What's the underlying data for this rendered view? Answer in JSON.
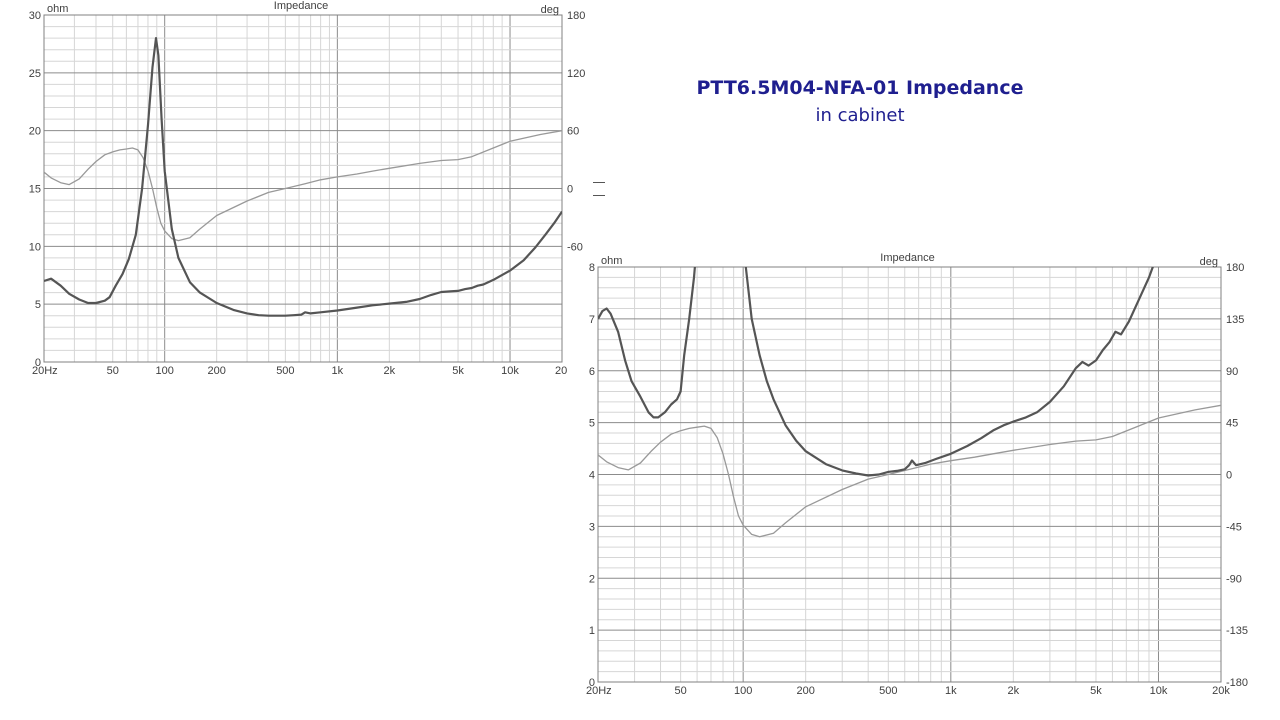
{
  "heading": {
    "title": "PTT6.5M04-NFA-01 Impedance",
    "subtitle": "in cabinet"
  },
  "chart_data": [
    {
      "type": "line",
      "title": "Impedance",
      "y_unit": "ohm",
      "y2_unit": "deg",
      "x_scale": "log",
      "xlim": [
        20,
        20000
      ],
      "ylim": [
        0,
        30
      ],
      "y2lim": [
        -180,
        180
      ],
      "x_tick_labels": [
        {
          "v": 20,
          "t": "20Hz"
        },
        {
          "v": 50,
          "t": "50"
        },
        {
          "v": 100,
          "t": "100"
        },
        {
          "v": 200,
          "t": "200"
        },
        {
          "v": 500,
          "t": "500"
        },
        {
          "v": 1000,
          "t": "1k"
        },
        {
          "v": 2000,
          "t": "2k"
        },
        {
          "v": 5000,
          "t": "5k"
        },
        {
          "v": 10000,
          "t": "10k"
        },
        {
          "v": 20000,
          "t": "20"
        }
      ],
      "y_ticks": [
        0,
        5,
        10,
        15,
        20,
        25,
        30
      ],
      "y2_ticks": [
        180,
        120,
        60,
        0,
        -60
      ],
      "grid": true,
      "series": [
        {
          "role": "impedance",
          "axis": "left",
          "color": "#555555",
          "points": [
            [
              20,
              7.0
            ],
            [
              22,
              7.2
            ],
            [
              25,
              6.6
            ],
            [
              28,
              5.9
            ],
            [
              32,
              5.4
            ],
            [
              36,
              5.1
            ],
            [
              40,
              5.1
            ],
            [
              45,
              5.3
            ],
            [
              48,
              5.6
            ],
            [
              52,
              6.6
            ],
            [
              57,
              7.6
            ],
            [
              62,
              8.9
            ],
            [
              68,
              11.0
            ],
            [
              74,
              15.0
            ],
            [
              80,
              20.5
            ],
            [
              85,
              25.5
            ],
            [
              89,
              28.0
            ],
            [
              92,
              26.5
            ],
            [
              96,
              21.0
            ],
            [
              100,
              16.5
            ],
            [
              110,
              11.5
            ],
            [
              120,
              9.0
            ],
            [
              140,
              6.9
            ],
            [
              160,
              6.0
            ],
            [
              200,
              5.1
            ],
            [
              250,
              4.5
            ],
            [
              300,
              4.2
            ],
            [
              350,
              4.05
            ],
            [
              400,
              4.0
            ],
            [
              500,
              4.0
            ],
            [
              560,
              4.05
            ],
            [
              620,
              4.1
            ],
            [
              650,
              4.3
            ],
            [
              700,
              4.2
            ],
            [
              800,
              4.3
            ],
            [
              1000,
              4.45
            ],
            [
              1300,
              4.7
            ],
            [
              1600,
              4.9
            ],
            [
              2000,
              5.05
            ],
            [
              2500,
              5.2
            ],
            [
              3000,
              5.45
            ],
            [
              3500,
              5.8
            ],
            [
              4000,
              6.05
            ],
            [
              4500,
              6.1
            ],
            [
              5000,
              6.15
            ],
            [
              5500,
              6.3
            ],
            [
              6000,
              6.4
            ],
            [
              6500,
              6.6
            ],
            [
              7000,
              6.7
            ],
            [
              8000,
              7.1
            ],
            [
              10000,
              7.9
            ],
            [
              12000,
              8.8
            ],
            [
              14000,
              9.9
            ],
            [
              16000,
              11.0
            ],
            [
              18000,
              12.0
            ],
            [
              20000,
              13.0
            ]
          ]
        },
        {
          "role": "phase",
          "axis": "right",
          "color": "#999999",
          "points": [
            [
              20,
              17
            ],
            [
              22,
              11
            ],
            [
              25,
              6
            ],
            [
              28,
              4
            ],
            [
              32,
              10
            ],
            [
              36,
              20
            ],
            [
              40,
              28
            ],
            [
              45,
              35
            ],
            [
              50,
              38
            ],
            [
              55,
              40
            ],
            [
              60,
              41
            ],
            [
              65,
              42
            ],
            [
              70,
              40
            ],
            [
              75,
              32
            ],
            [
              80,
              18
            ],
            [
              85,
              0
            ],
            [
              90,
              -20
            ],
            [
              95,
              -36
            ],
            [
              100,
              -44
            ],
            [
              110,
              -52
            ],
            [
              120,
              -54
            ],
            [
              140,
              -51
            ],
            [
              160,
              -42
            ],
            [
              200,
              -28
            ],
            [
              300,
              -13
            ],
            [
              400,
              -4
            ],
            [
              500,
              0
            ],
            [
              650,
              5
            ],
            [
              800,
              9
            ],
            [
              1000,
              12
            ],
            [
              1300,
              15
            ],
            [
              1600,
              18
            ],
            [
              2000,
              21
            ],
            [
              3000,
              26
            ],
            [
              4000,
              29
            ],
            [
              5000,
              30
            ],
            [
              6000,
              33
            ],
            [
              8000,
              42
            ],
            [
              10000,
              49
            ],
            [
              15000,
              56
            ],
            [
              20000,
              60
            ]
          ]
        }
      ]
    },
    {
      "type": "line",
      "title": "Impedance",
      "y_unit": "ohm",
      "y2_unit": "deg",
      "x_scale": "log",
      "xlim": [
        20,
        20000
      ],
      "ylim": [
        0,
        8
      ],
      "y2lim": [
        -180,
        180
      ],
      "x_tick_labels": [
        {
          "v": 20,
          "t": "20Hz"
        },
        {
          "v": 50,
          "t": "50"
        },
        {
          "v": 100,
          "t": "100"
        },
        {
          "v": 200,
          "t": "200"
        },
        {
          "v": 500,
          "t": "500"
        },
        {
          "v": 1000,
          "t": "1k"
        },
        {
          "v": 2000,
          "t": "2k"
        },
        {
          "v": 5000,
          "t": "5k"
        },
        {
          "v": 10000,
          "t": "10k"
        },
        {
          "v": 20000,
          "t": "20k"
        }
      ],
      "y_ticks": [
        0,
        1,
        2,
        3,
        4,
        5,
        6,
        7,
        8
      ],
      "y2_ticks": [
        180,
        135,
        90,
        45,
        0,
        -45,
        -90,
        -135,
        -180
      ],
      "grid": true,
      "series": [
        {
          "role": "impedance",
          "axis": "left",
          "color": "#555555",
          "points": [
            [
              20,
              7.0
            ],
            [
              21,
              7.15
            ],
            [
              22,
              7.2
            ],
            [
              23,
              7.1
            ],
            [
              25,
              6.75
            ],
            [
              27,
              6.2
            ],
            [
              29,
              5.8
            ],
            [
              32,
              5.5
            ],
            [
              35,
              5.2
            ],
            [
              37,
              5.1
            ],
            [
              39,
              5.1
            ],
            [
              42,
              5.2
            ],
            [
              45,
              5.35
            ],
            [
              48,
              5.45
            ],
            [
              50,
              5.6
            ],
            [
              52,
              6.3
            ],
            [
              55,
              7.0
            ],
            [
              58,
              7.8
            ],
            [
              60,
              8.5
            ],
            [
              100,
              8.6
            ],
            [
              103,
              8.0
            ],
            [
              110,
              7.0
            ],
            [
              120,
              6.3
            ],
            [
              130,
              5.8
            ],
            [
              140,
              5.45
            ],
            [
              160,
              4.95
            ],
            [
              180,
              4.65
            ],
            [
              200,
              4.45
            ],
            [
              250,
              4.2
            ],
            [
              300,
              4.08
            ],
            [
              350,
              4.02
            ],
            [
              400,
              3.98
            ],
            [
              450,
              4.0
            ],
            [
              500,
              4.05
            ],
            [
              550,
              4.07
            ],
            [
              600,
              4.1
            ],
            [
              630,
              4.18
            ],
            [
              650,
              4.27
            ],
            [
              680,
              4.18
            ],
            [
              750,
              4.22
            ],
            [
              850,
              4.3
            ],
            [
              1000,
              4.4
            ],
            [
              1200,
              4.55
            ],
            [
              1400,
              4.7
            ],
            [
              1600,
              4.85
            ],
            [
              1800,
              4.95
            ],
            [
              2000,
              5.02
            ],
            [
              2300,
              5.1
            ],
            [
              2600,
              5.2
            ],
            [
              3000,
              5.4
            ],
            [
              3500,
              5.7
            ],
            [
              4000,
              6.05
            ],
            [
              4300,
              6.17
            ],
            [
              4600,
              6.1
            ],
            [
              5000,
              6.2
            ],
            [
              5400,
              6.4
            ],
            [
              5800,
              6.55
            ],
            [
              6200,
              6.75
            ],
            [
              6600,
              6.7
            ],
            [
              7200,
              6.95
            ],
            [
              8000,
              7.35
            ],
            [
              9000,
              7.8
            ],
            [
              10000,
              8.3
            ]
          ]
        },
        {
          "role": "phase",
          "axis": "right",
          "color": "#999999",
          "points": [
            [
              20,
              17
            ],
            [
              22,
              11
            ],
            [
              25,
              6
            ],
            [
              28,
              4
            ],
            [
              32,
              10
            ],
            [
              36,
              20
            ],
            [
              40,
              28
            ],
            [
              45,
              35
            ],
            [
              50,
              38
            ],
            [
              55,
              40
            ],
            [
              60,
              41
            ],
            [
              65,
              42
            ],
            [
              70,
              40
            ],
            [
              75,
              32
            ],
            [
              80,
              18
            ],
            [
              85,
              0
            ],
            [
              90,
              -20
            ],
            [
              95,
              -36
            ],
            [
              100,
              -44
            ],
            [
              110,
              -52
            ],
            [
              120,
              -54
            ],
            [
              140,
              -51
            ],
            [
              160,
              -42
            ],
            [
              200,
              -28
            ],
            [
              300,
              -13
            ],
            [
              400,
              -4
            ],
            [
              500,
              0
            ],
            [
              650,
              5
            ],
            [
              800,
              9
            ],
            [
              1000,
              12
            ],
            [
              1300,
              15
            ],
            [
              1600,
              18
            ],
            [
              2000,
              21
            ],
            [
              3000,
              26
            ],
            [
              4000,
              29
            ],
            [
              5000,
              30
            ],
            [
              6000,
              33
            ],
            [
              8000,
              42
            ],
            [
              10000,
              49
            ],
            [
              15000,
              56
            ],
            [
              20000,
              60
            ]
          ]
        }
      ]
    }
  ]
}
